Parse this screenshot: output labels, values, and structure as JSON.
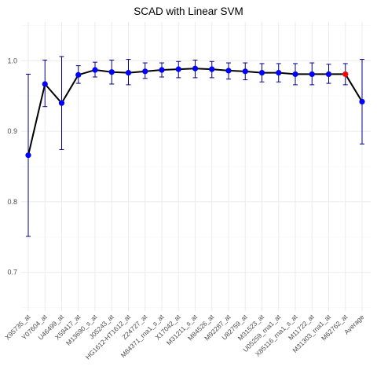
{
  "chart_data": {
    "type": "line",
    "title": "SCAD with Linear SVM",
    "xlabel": "",
    "ylabel": "",
    "ylim": [
      0.645,
      1.055
    ],
    "y_ticks": [
      0.7,
      0.8,
      0.9,
      1.0
    ],
    "y_tick_labels": [
      "0.7",
      "0.8",
      "0.9",
      "1.0"
    ],
    "grid": true,
    "categories": [
      "X95735_at",
      "Y07604_at",
      "U46499_at",
      "X59417_at",
      "M13690_s_at",
      "J05243_at",
      "HG1612-HT1612_at",
      "Z24727_at",
      "M84371_rna1_s_at",
      "X17042_at",
      "M31211_s_at",
      "M84526_at",
      "M92287_at",
      "U82759_at",
      "M31523_at",
      "U05259_rna1_at",
      "X85116_rna1_s_at",
      "M11722_at",
      "M31303_rna1_at",
      "M62762_at",
      "Average"
    ],
    "values": [
      0.866,
      0.967,
      0.94,
      0.98,
      0.987,
      0.984,
      0.983,
      0.985,
      0.987,
      0.988,
      0.989,
      0.988,
      0.986,
      0.985,
      0.983,
      0.983,
      0.981,
      0.981,
      0.981,
      0.981,
      0.942
    ],
    "lower": [
      0.751,
      0.935,
      0.874,
      0.968,
      0.977,
      0.967,
      0.966,
      0.975,
      0.977,
      0.976,
      0.976,
      0.976,
      0.974,
      0.973,
      0.97,
      0.97,
      0.966,
      0.966,
      0.968,
      0.966,
      0.882
    ],
    "upper": [
      0.981,
      1.001,
      1.006,
      0.993,
      0.998,
      1.001,
      1.002,
      0.997,
      0.997,
      0.999,
      1.001,
      0.999,
      0.997,
      0.997,
      0.996,
      0.996,
      0.996,
      0.997,
      0.995,
      0.996,
      1.002
    ],
    "highlight_index": 19,
    "colors": {
      "line": "#000000",
      "point": "#0000ff",
      "errorbar": "#00008b",
      "highlight": "#ff0000",
      "grid": "#ebebeb"
    }
  }
}
